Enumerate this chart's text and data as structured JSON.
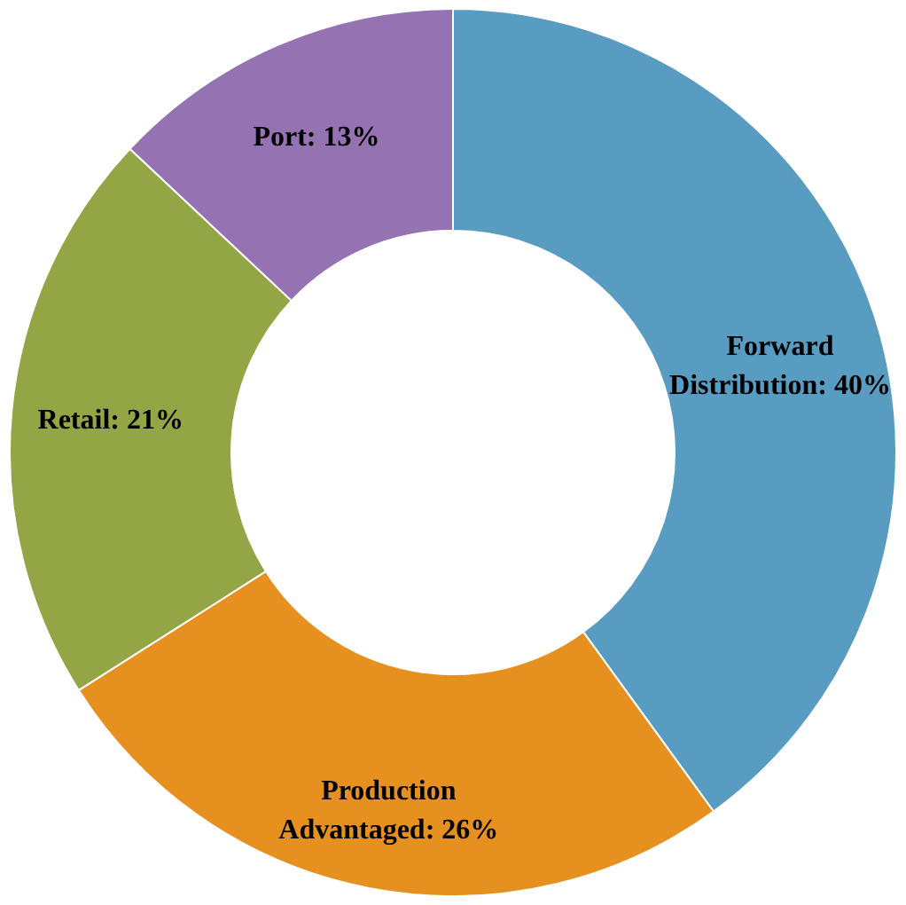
{
  "chart_data": {
    "type": "donut",
    "categories": [
      "Forward Distribution",
      "Production Advantaged",
      "Retail",
      "Port"
    ],
    "values": [
      40,
      26,
      21,
      13
    ],
    "colors": [
      "#589cc1",
      "#e5901f",
      "#94a545",
      "#9572b1"
    ],
    "value_labels": [
      "40%",
      "26%",
      "21%",
      "13%"
    ],
    "legend": false
  }
}
